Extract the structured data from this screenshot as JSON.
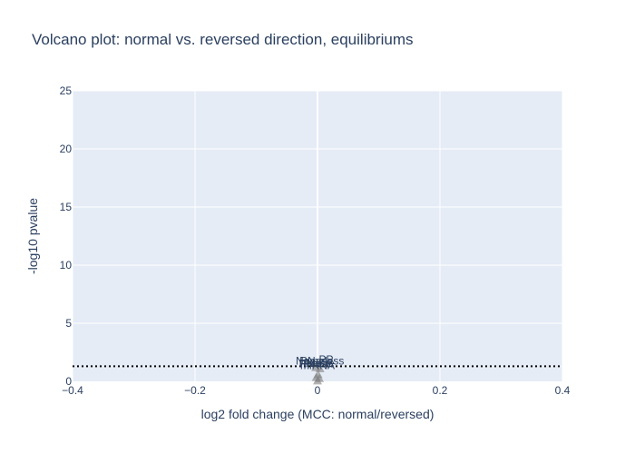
{
  "chart_data": {
    "type": "scatter",
    "title": "Volcano plot: normal vs. reversed direction, equilibriums",
    "xlabel": "log2 fold change (MCC: normal/reversed)",
    "ylabel": "-log10 pvalue",
    "xlim": [
      -0.4,
      0.4
    ],
    "ylim": [
      0,
      25
    ],
    "xticks": [
      -0.4,
      -0.2,
      0,
      0.2,
      0.4
    ],
    "xtick_labels": [
      "−0.4",
      "−0.2",
      "0",
      "0.2",
      "0.4"
    ],
    "yticks": [
      0,
      5,
      10,
      15,
      20,
      25
    ],
    "ytick_labels": [
      "0",
      "5",
      "10",
      "15",
      "20",
      "25"
    ],
    "grid": true,
    "threshold": {
      "y": 1.3,
      "style": "dotted"
    },
    "points": [
      {
        "x": 0.0,
        "y": 0.05
      },
      {
        "x": 0.003,
        "y": 0.25
      },
      {
        "x": -0.002,
        "y": 0.35
      },
      {
        "x": 0.001,
        "y": 0.6
      },
      {
        "x": 0.004,
        "y": 1.1
      },
      {
        "x": -0.003,
        "y": 1.2
      }
    ],
    "annotations": [
      {
        "text": "RNase",
        "x": -0.002,
        "y": 1.45
      },
      {
        "text": "Nameless",
        "x": 0.004,
        "y": 1.45
      },
      {
        "text": "PP",
        "x": 0.014,
        "y": 1.55
      },
      {
        "text": "RNase",
        "x": -0.003,
        "y": 1.2
      },
      {
        "text": "Name",
        "x": 0.004,
        "y": 1.25
      },
      {
        "text": "miRNA",
        "x": 0.0,
        "y": 1.05
      }
    ],
    "colors": {
      "plot_bg": "#e5ecf6",
      "grid": "#ffffff",
      "text": "#2a3f5f",
      "marker": "#7f7f7f",
      "threshold": "#000000"
    }
  }
}
